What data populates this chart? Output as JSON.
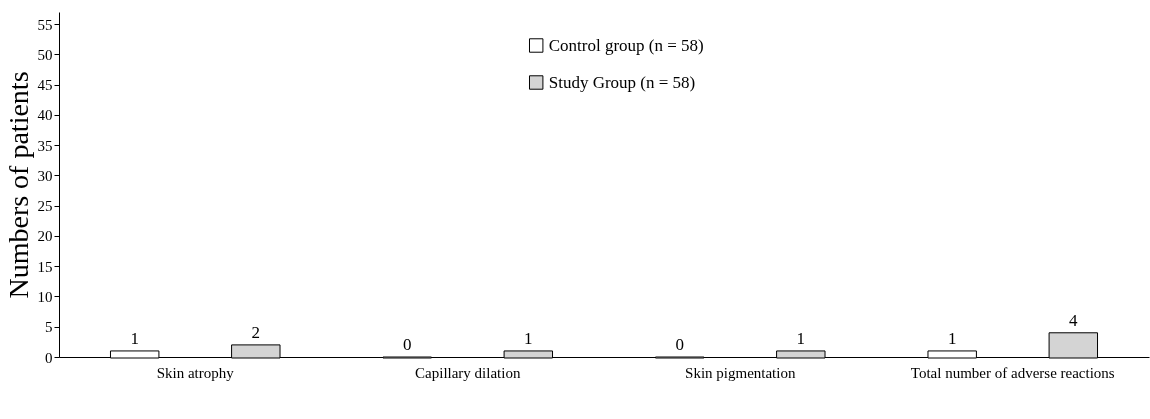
{
  "chart_data": {
    "type": "bar",
    "ylabel": "Numbers of patients",
    "categories": [
      "Skin atrophy",
      "Capillary dilation",
      "Skin pigmentation",
      "Total number of adverse reactions"
    ],
    "series": [
      {
        "name": "Control group (n = 58)",
        "color": "#ffffff",
        "values": [
          1,
          0,
          0,
          1
        ]
      },
      {
        "name": "Study Group (n = 58)",
        "color": "#d4d4d4",
        "values": [
          2,
          1,
          1,
          4
        ]
      }
    ],
    "ylim": [
      0,
      57
    ],
    "yticks": [
      0,
      5,
      10,
      15,
      20,
      25,
      30,
      35,
      40,
      45,
      50,
      55
    ],
    "grid": false,
    "legend": "top",
    "data_labels": true
  }
}
